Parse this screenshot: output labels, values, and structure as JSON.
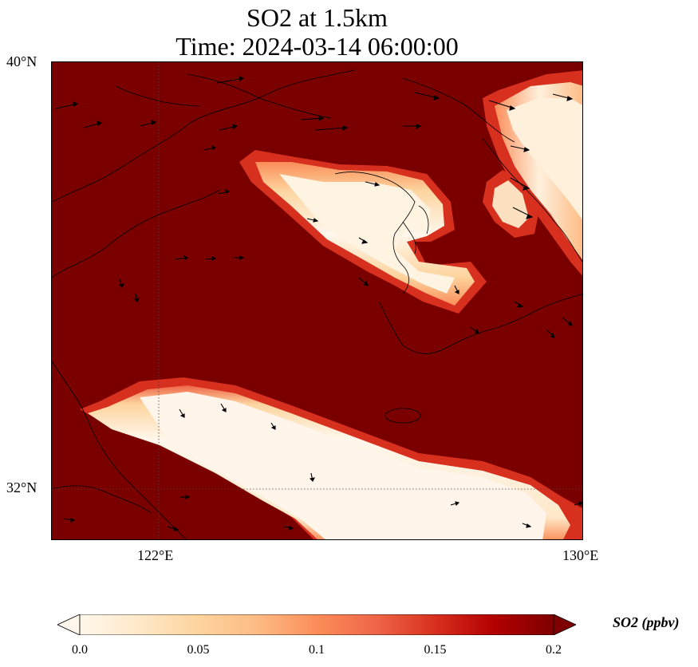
{
  "title": {
    "line1": "SO2 at 1.5km",
    "line2": "Time: 2024-03-14 06:00:00"
  },
  "axes": {
    "lat_labels": [
      "40°N",
      "32°N"
    ],
    "lon_labels": [
      "122°E",
      "130°E"
    ]
  },
  "colorbar": {
    "label": "SO2 (ppbv)",
    "ticks": [
      "0.0",
      "0.05",
      "0.1",
      "0.15",
      "0.2"
    ],
    "range": [
      0.0,
      0.2
    ],
    "extend": "both",
    "colormap": "OrRd",
    "colors": [
      "#fff7ec",
      "#fee8c8",
      "#fdd49e",
      "#fdbb84",
      "#fc8d59",
      "#ef6548",
      "#d7301f",
      "#b30000",
      "#7f0000"
    ]
  },
  "chart_data": {
    "type": "heatmap",
    "variable": "SO2",
    "units": "ppbv",
    "level": "1.5km",
    "time": "2024-03-14 06:00:00",
    "lon_range": [
      120,
      130
    ],
    "lat_range": [
      31,
      40
    ],
    "value_range": [
      0.0,
      0.2
    ],
    "background_level": "> 0.2 (saturated dark red)",
    "features": [
      {
        "name": "northern low-SO2 band (Liaodong peninsula region)",
        "min_value": 0.0
      },
      {
        "name": "southern low-SO2 band (Yellow Sea / East China Sea)",
        "min_value": 0.0
      },
      {
        "name": "northeast low-SO2 patch",
        "min_value": 0.0
      }
    ],
    "overlays": [
      "coastlines",
      "wind vectors",
      "lat/lon gridlines (dotted)"
    ]
  }
}
